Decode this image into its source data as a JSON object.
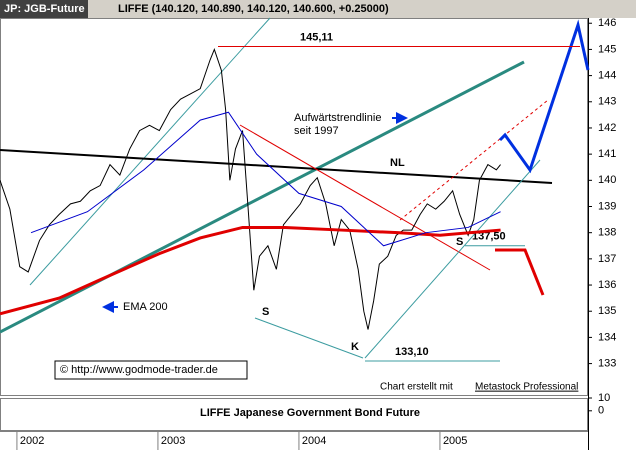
{
  "chart_data": {
    "type": "line",
    "title": "JP: JGB-Future",
    "subtitle": "LIFFE (140.120, 140.890, 140.120, 140.600, +0.25000)",
    "x": [
      2001.88,
      2001.95,
      2002.02,
      2002.08,
      2002.16,
      2002.23,
      2002.3,
      2002.38,
      2002.45,
      2002.52,
      2002.59,
      2002.66,
      2002.73,
      2002.8,
      2002.87,
      2002.94,
      2003.01,
      2003.09,
      2003.16,
      2003.23,
      2003.3,
      2003.37,
      2003.4,
      2003.45,
      2003.48,
      2003.51,
      2003.55,
      2003.6,
      2003.64,
      2003.68,
      2003.72,
      2003.78,
      2003.84,
      2003.89,
      2003.95,
      2004.01,
      2004.08,
      2004.13,
      2004.19,
      2004.25,
      2004.3,
      2004.36,
      2004.42,
      2004.46,
      2004.49,
      2004.53,
      2004.57,
      2004.63,
      2004.69,
      2004.74,
      2004.8,
      2004.86,
      2004.91,
      2004.97,
      2005.03,
      2005.09,
      2005.14,
      2005.2,
      2005.24,
      2005.28,
      2005.34,
      2005.4,
      2005.43
    ],
    "xlim": [
      2001.88,
      2006.05
    ],
    "xticks": [
      2002,
      2003,
      2004,
      2005
    ],
    "ylim": [
      131.8,
      146.2
    ],
    "yticks": [
      133,
      134,
      135,
      136,
      137,
      138,
      139,
      140,
      141,
      142,
      143,
      144,
      145,
      146
    ],
    "series": [
      {
        "color": "#000000",
        "values": [
          140.0,
          138.9,
          136.7,
          136.5,
          137.7,
          138.3,
          138.7,
          139.1,
          139.2,
          139.6,
          139.8,
          140.6,
          140.2,
          141.2,
          141.9,
          142.1,
          141.9,
          142.7,
          143.1,
          143.3,
          143.5,
          144.6,
          145.0,
          144.2,
          142.7,
          140.0,
          141.2,
          141.9,
          138.9,
          135.8,
          137.1,
          137.5,
          136.6,
          138.3,
          138.7,
          139.1,
          139.8,
          140.1,
          139.1,
          137.5,
          138.5,
          138.1,
          136.6,
          135.0,
          134.3,
          135.4,
          136.8,
          137.1,
          137.9,
          138.1,
          138.1,
          138.7,
          139.1,
          138.9,
          139.2,
          139.6,
          138.7,
          137.9,
          138.5,
          140.0,
          140.6,
          140.4,
          140.6
        ]
      },
      {
        "name": "EMA 200",
        "color": "#e00000",
        "x": [
          2001.88,
          2002.3,
          2002.59,
          2003.01,
          2003.3,
          2003.6,
          2003.9,
          2004.3,
          2004.7,
          2005.0,
          2005.43
        ],
        "values": [
          134.9,
          135.5,
          136.2,
          137.2,
          137.8,
          138.2,
          138.2,
          138.1,
          138.0,
          137.9,
          138.1
        ]
      },
      {
        "color": "#0000cc",
        "x": [
          2002.1,
          2002.5,
          2002.9,
          2003.3,
          2003.5,
          2003.7,
          2004.0,
          2004.3,
          2004.6,
          2004.9,
          2005.2,
          2005.43
        ],
        "values": [
          138.0,
          138.8,
          140.4,
          142.3,
          142.6,
          141.0,
          139.5,
          139.0,
          137.5,
          138.0,
          138.2,
          138.8
        ]
      }
    ],
    "levels": [
      {
        "value": 145.11,
        "label": "145,11"
      },
      {
        "value": 133.1,
        "label": "133,10"
      },
      {
        "value": 137.5,
        "label": "137,50"
      }
    ],
    "trend_label": [
      "Aufwärtstrendlinie",
      "seit 1997"
    ],
    "pattern_labels": [
      "NL",
      "S",
      "S",
      "K"
    ],
    "source": "© http://www.godmode-trader.de",
    "credit": "Chart erstellt mit",
    "credit_link": "Metastock Professional",
    "lower_pane": {
      "title": "LIFFE Japanese Government Bond Future",
      "ylim": [
        -15,
        10
      ],
      "yticks": [
        0,
        10
      ]
    }
  }
}
